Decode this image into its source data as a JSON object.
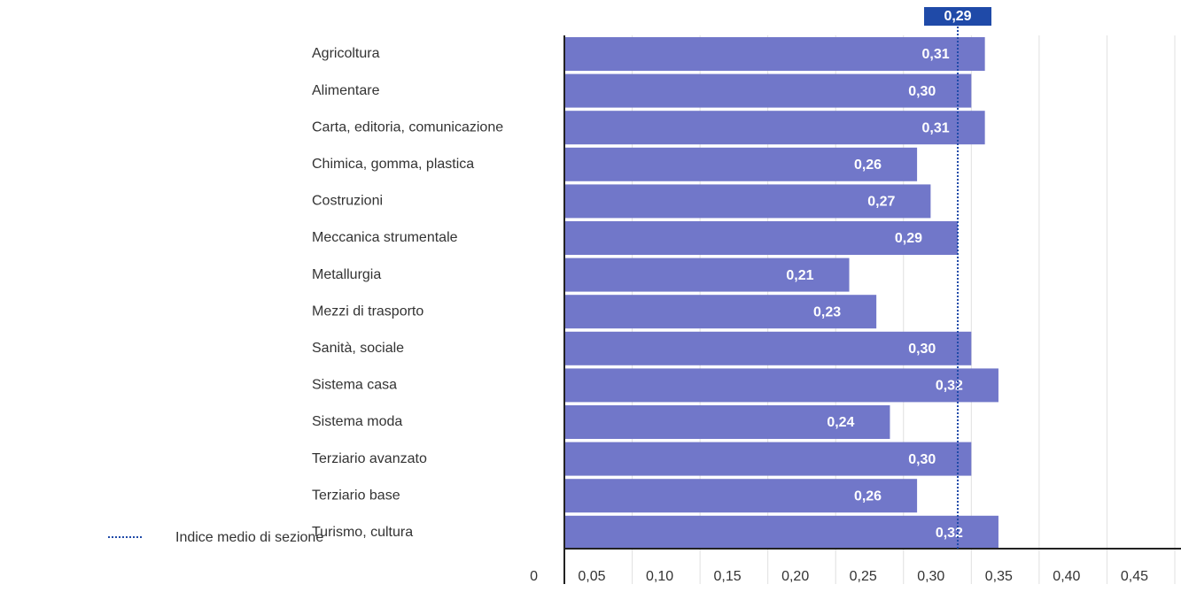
{
  "chart_data": {
    "type": "bar",
    "orientation": "horizontal",
    "categories": [
      "Agricoltura",
      "Alimentare",
      "Carta, editoria, comunicazione",
      "Chimica, gomma, plastica",
      "Costruzioni",
      "Meccanica strumentale",
      "Metallurgia",
      "Mezzi di trasporto",
      "Sanità, sociale",
      "Sistema casa",
      "Sistema moda",
      "Terziario avanzato",
      "Terziario base",
      "Turismo, cultura"
    ],
    "values": [
      0.31,
      0.3,
      0.31,
      0.26,
      0.27,
      0.29,
      0.21,
      0.23,
      0.3,
      0.32,
      0.24,
      0.3,
      0.26,
      0.32
    ],
    "value_labels": [
      "0,31",
      "0,30",
      "0,31",
      "0,26",
      "0,27",
      "0,29",
      "0,21",
      "0,23",
      "0,30",
      "0,32",
      "0,24",
      "0,30",
      "0,26",
      "0,32"
    ],
    "color": "#7177c9",
    "xlim": [
      0,
      0.45
    ],
    "xticks": [
      0,
      {
        "value": 0.05,
        "label": "0,05"
      },
      {
        "value": 0.1,
        "label": "0,10"
      },
      {
        "value": 0.15,
        "label": "0,15"
      },
      {
        "value": 0.2,
        "label": "0,20"
      },
      {
        "value": 0.25,
        "label": "0,25"
      },
      {
        "value": 0.3,
        "label": "0,30"
      },
      {
        "value": 0.35,
        "label": "0,35"
      },
      {
        "value": 0.4,
        "label": "0,40"
      },
      {
        "value": 0.45,
        "label": "0,45"
      }
    ],
    "grid": true,
    "reference_line": {
      "name": "Indice medio di sezione",
      "value": 0.29,
      "label": "0,29",
      "color": "#1f4aa8"
    }
  }
}
